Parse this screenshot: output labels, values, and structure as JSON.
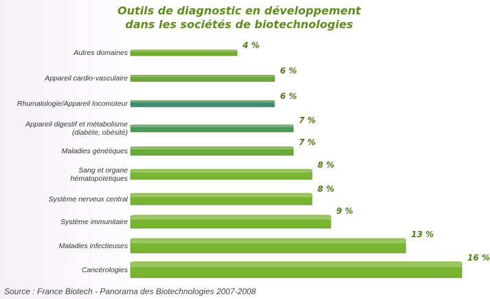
{
  "chart_data": {
    "type": "bar",
    "orientation": "horizontal",
    "title": "Outils de diagnostic en développement\ndans les sociétés de biotechnologies",
    "categories": [
      "Autres domaines",
      "Appareil cardio-vasculaire",
      "Rhumatologie/Appareil locomoteur",
      "Appareil digestif et métabolisme\n(diabète, obésité)",
      "Maladies génétiques",
      "Sang et organe\nhématopoïetiques",
      "Système nerveux central",
      "Système immunitaire",
      "Maladies infectieuses",
      "Cancérologies"
    ],
    "values": [
      4,
      6,
      6,
      7,
      7,
      8,
      8,
      9,
      13,
      16
    ],
    "value_labels": [
      "4 %",
      "6 %",
      "6 %",
      "7 %",
      "7 %",
      "8 %",
      "8 %",
      "9 %",
      "13 %",
      "16 %"
    ],
    "colors": [
      "#72ad2e",
      "#6aa63a",
      "#3e8c72",
      "#4a9a5a",
      "#6aaa38",
      "#7ab532",
      "#7ab532",
      "#7ab532",
      "#7ab532",
      "#7ab532"
    ],
    "source": "Source : France Biotech - Panorama des Biotechnologies 2007-2008"
  }
}
